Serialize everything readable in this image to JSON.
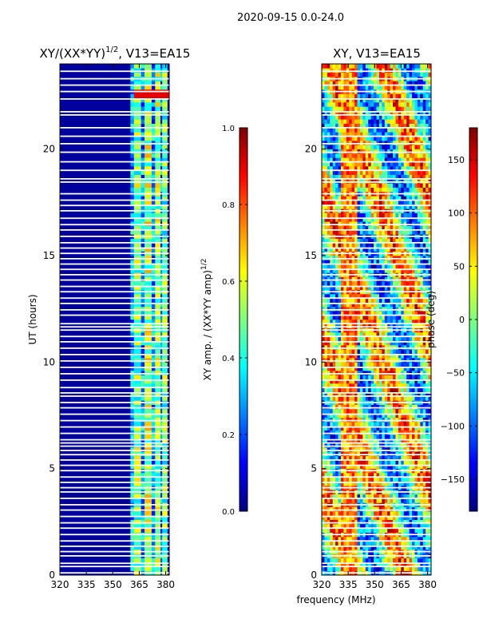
{
  "figure": {
    "suptitle": "2020-09-15 0.0-24.0",
    "shared_xlabel": "frequency (MHz)"
  },
  "colors": {
    "jet": [
      "#00007f",
      "#0000ff",
      "#007fff",
      "#00ffff",
      "#7fff7f",
      "#ffff00",
      "#ff7f00",
      "#ff0000",
      "#7f0000"
    ]
  },
  "chart_data": [
    {
      "type": "heatmap",
      "title": "XY/(XX*YY)",
      "title_sup": "1/2",
      "title_suffix": ", V13=EA15",
      "xlabel": "",
      "ylabel": "UT (hours)",
      "xlim": [
        320,
        382
      ],
      "ylim": [
        0,
        24
      ],
      "xticks": [
        320,
        335,
        350,
        365,
        380
      ],
      "yticks": [
        0,
        5,
        10,
        15,
        20
      ],
      "colorbar": {
        "label": "XY amp. / (XX*YY amp)",
        "label_sup": "1/2",
        "range": [
          0.0,
          1.0
        ],
        "ticks": [
          "0.0",
          "0.2",
          "0.4",
          "0.6",
          "0.8",
          "1.0"
        ],
        "tick_values": [
          0.0,
          0.2,
          0.4,
          0.6,
          0.8,
          1.0
        ]
      },
      "bands": [
        {
          "x0": 320,
          "x1": 360,
          "value": 0.03
        },
        {
          "x0": 360,
          "x1": 362,
          "value": 0.3
        },
        {
          "x0": 362,
          "x1": 366,
          "value": 0.5
        },
        {
          "x0": 366,
          "x1": 368,
          "value": 0.3
        },
        {
          "x0": 368,
          "x1": 372,
          "value": 0.55
        },
        {
          "x0": 372,
          "x1": 374,
          "value": 0.28
        },
        {
          "x0": 374,
          "x1": 377,
          "value": 0.52
        },
        {
          "x0": 377,
          "x1": 378,
          "value": 0.25
        },
        {
          "x0": 378,
          "x1": 381,
          "value": 0.48
        },
        {
          "x0": 381,
          "x1": 382,
          "value": 0.05
        }
      ]
    },
    {
      "type": "heatmap",
      "title": "XY, V13=EA15",
      "xlabel": "",
      "ylabel": "",
      "xlim": [
        320,
        382
      ],
      "ylim": [
        0,
        24
      ],
      "xticks": [
        320,
        335,
        350,
        365,
        380
      ],
      "yticks": [
        0,
        5,
        10,
        15,
        20
      ],
      "colorbar": {
        "label": "phase (deg)",
        "range": [
          -180,
          180
        ],
        "ticks": [
          "−150",
          "−100",
          "−50",
          "0",
          "50",
          "100",
          "150"
        ],
        "tick_values": [
          -150,
          -100,
          -50,
          0,
          50,
          100,
          150
        ]
      }
    }
  ],
  "gaps_hours": [
    0.1,
    0.4,
    0.55,
    0.9,
    1.1,
    1.35,
    1.6,
    1.9,
    2.2,
    2.45,
    2.75,
    3.05,
    3.3,
    3.6,
    3.9,
    4.1,
    4.35,
    4.6,
    4.9,
    5.15,
    5.4,
    5.65,
    5.85,
    6.05,
    6.2,
    6.35,
    6.65,
    6.95,
    7.25,
    7.55,
    7.85,
    8.1,
    8.4,
    8.55,
    8.8,
    9.15,
    9.45,
    9.75,
    10.05,
    10.35,
    10.65,
    10.95,
    11.2,
    11.5,
    11.65,
    11.8,
    12.2,
    12.45,
    12.75,
    13.0,
    13.3,
    13.55,
    13.85,
    14.1,
    14.35,
    14.6,
    14.85,
    15.1,
    15.35,
    15.6,
    15.9,
    16.2,
    16.45,
    16.75,
    17.1,
    17.35,
    17.6,
    17.9,
    18.45,
    18.6,
    19.0,
    19.4,
    19.85,
    20.25,
    20.6,
    21.0,
    21.6,
    21.75,
    22.35,
    22.7,
    23.0,
    23.3,
    23.65
  ]
}
